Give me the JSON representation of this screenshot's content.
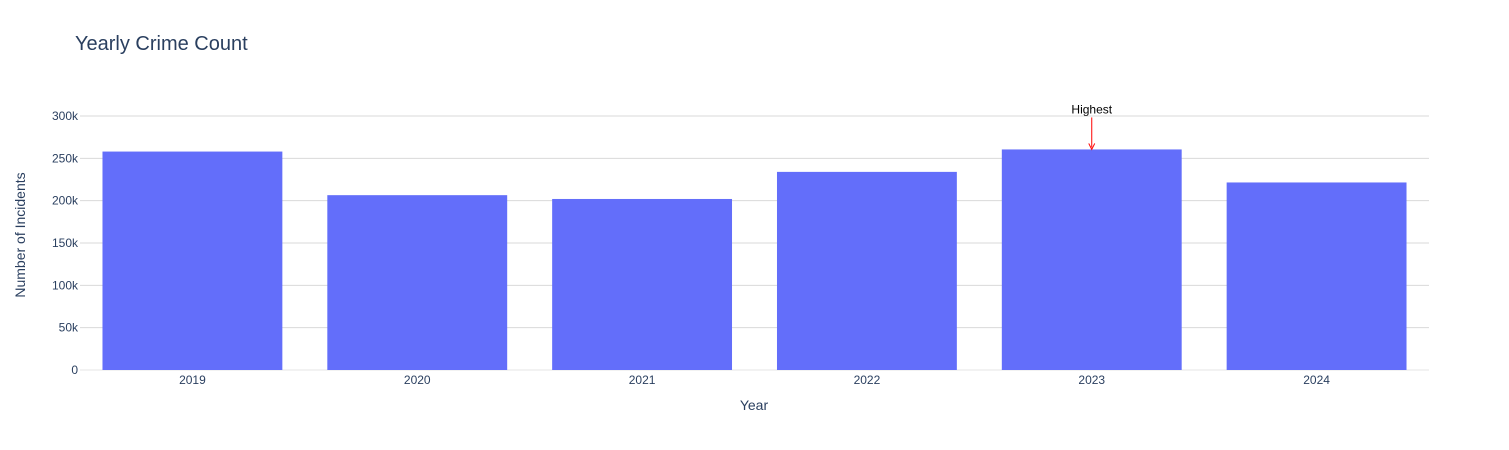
{
  "chart_data": {
    "type": "bar",
    "title": "Yearly Crime Count",
    "xlabel": "Year",
    "ylabel": "Number of Incidents",
    "categories": [
      "2019",
      "2020",
      "2021",
      "2022",
      "2023",
      "2024"
    ],
    "values": [
      258000,
      206500,
      202000,
      234000,
      260500,
      221500
    ],
    "ylim": [
      0,
      300000
    ],
    "yticks": [
      0,
      50000,
      100000,
      150000,
      200000,
      250000,
      300000
    ],
    "ytick_labels": [
      "0",
      "50k",
      "100k",
      "150k",
      "200k",
      "250k",
      "300k"
    ],
    "grid": true,
    "bar_color": "#636efa",
    "annotation": {
      "text": "Highest",
      "category": "2023",
      "arrow_color": "#ff0000"
    }
  }
}
